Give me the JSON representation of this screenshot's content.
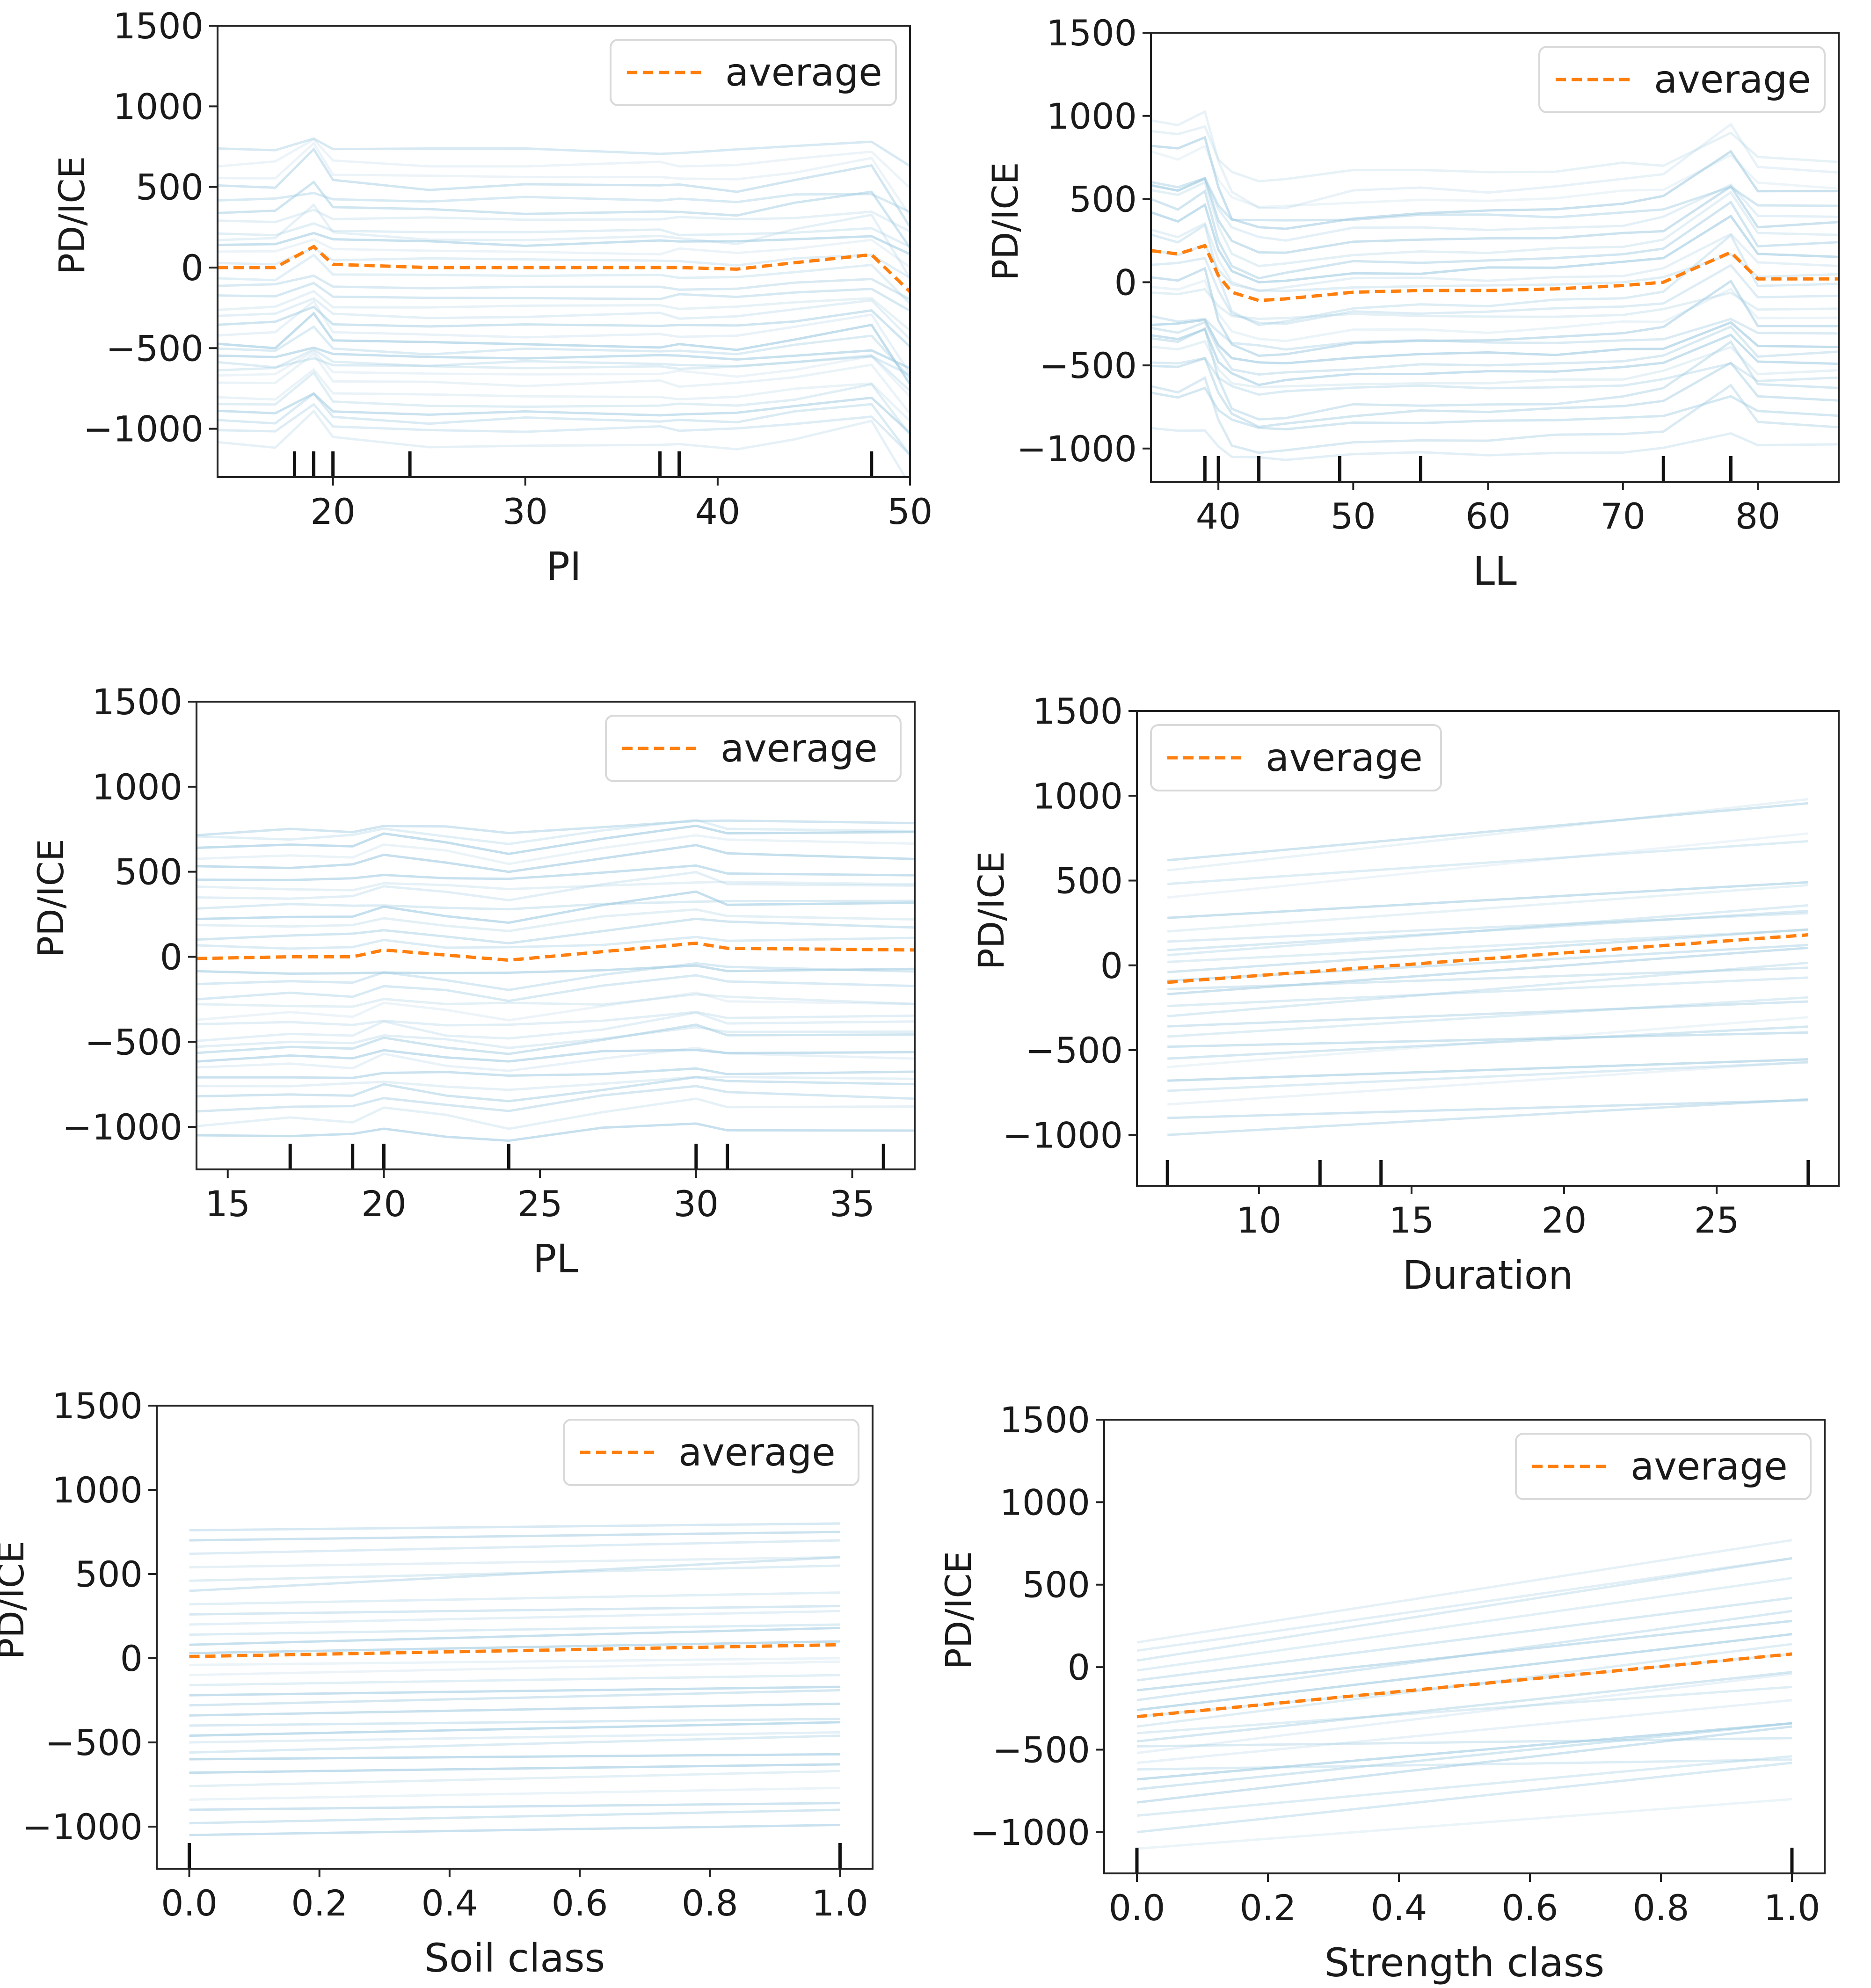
{
  "chart_data": [
    {
      "type": "line",
      "xlabel": "PI",
      "ylabel": "PD/ICE",
      "legend": "average",
      "legend_position": "upper right",
      "xlim": [
        14,
        50
      ],
      "ylim": [
        -1300,
        1500
      ],
      "xticks": [
        20,
        30,
        40,
        50
      ],
      "yticks": [
        -1000,
        -500,
        0,
        500,
        1000,
        1500
      ],
      "rug": [
        18,
        19,
        20,
        24,
        37,
        38,
        48
      ],
      "average": {
        "x": [
          14,
          17,
          19,
          20,
          25,
          30,
          37,
          38,
          41,
          44,
          48,
          50
        ],
        "y": [
          0,
          0,
          130,
          20,
          0,
          0,
          0,
          0,
          -10,
          30,
          80,
          -150
        ]
      },
      "ice_offsets": [
        -1100,
        -1000,
        -950,
        -900,
        -850,
        -800,
        -720,
        -650,
        -620,
        -600,
        -560,
        -520,
        -480,
        -420,
        -350,
        -300,
        -250,
        -180,
        -120,
        -60,
        40,
        100,
        150,
        180,
        220,
        300,
        350,
        420,
        500,
        560,
        640,
        720
      ]
    },
    {
      "type": "line",
      "xlabel": "LL",
      "ylabel": "PD/ICE",
      "legend": "average",
      "legend_position": "upper right",
      "xlim": [
        35,
        86
      ],
      "ylim": [
        -1200,
        1500
      ],
      "xticks": [
        40,
        50,
        60,
        70,
        80
      ],
      "yticks": [
        -1000,
        -500,
        0,
        500,
        1000,
        1500
      ],
      "rug": [
        39,
        40,
        43,
        49,
        55,
        73,
        78
      ],
      "average": {
        "x": [
          35,
          37,
          39,
          40,
          41,
          43,
          45,
          50,
          55,
          60,
          65,
          70,
          73,
          78,
          80,
          86
        ],
        "y": [
          190,
          170,
          220,
          40,
          -60,
          -110,
          -100,
          -60,
          -50,
          -50,
          -40,
          -20,
          0,
          180,
          20,
          20
        ]
      },
      "ice_offsets": [
        -1000,
        -880,
        -800,
        -720,
        -650,
        -600,
        -550,
        -500,
        -450,
        -400,
        -330,
        -280,
        -230,
        -170,
        -110,
        -50,
        30,
        80,
        140,
        200,
        260,
        320,
        380,
        440,
        500,
        560,
        640,
        720
      ]
    },
    {
      "type": "line",
      "xlabel": "PL",
      "ylabel": "PD/ICE",
      "legend": "average",
      "legend_position": "upper right",
      "xlim": [
        14,
        37
      ],
      "ylim": [
        -1250,
        1500
      ],
      "xticks": [
        15,
        20,
        25,
        30,
        35
      ],
      "yticks": [
        -1000,
        -500,
        0,
        500,
        1000,
        1500
      ],
      "rug": [
        17,
        19,
        20,
        24,
        30,
        31,
        36
      ],
      "average": {
        "x": [
          14,
          17,
          19,
          20,
          22,
          24,
          27,
          30,
          31,
          37
        ],
        "y": [
          -10,
          0,
          0,
          40,
          10,
          -20,
          30,
          80,
          50,
          40
        ]
      },
      "ice_offsets": [
        -1050,
        -960,
        -880,
        -820,
        -760,
        -700,
        -640,
        -590,
        -540,
        -500,
        -460,
        -400,
        -340,
        -280,
        -220,
        -160,
        -100,
        60,
        120,
        180,
        240,
        290,
        360,
        410,
        470,
        530,
        590,
        650,
        700,
        740
      ]
    },
    {
      "type": "line",
      "xlabel": "Duration",
      "ylabel": "PD/ICE",
      "legend": "average",
      "legend_position": "upper left",
      "xlim": [
        6,
        29
      ],
      "ylim": [
        -1300,
        1500
      ],
      "xticks": [
        10,
        15,
        20,
        25
      ],
      "yticks": [
        -1000,
        -500,
        0,
        500,
        1000,
        1500
      ],
      "rug": [
        7,
        12,
        14,
        28
      ],
      "average": {
        "x": [
          7,
          28
        ],
        "y": [
          -100,
          180
        ]
      },
      "ice_start": [
        -1000,
        -900,
        -820,
        -740,
        -680,
        -600,
        -550,
        -480,
        -420,
        -360,
        -300,
        -240,
        -170,
        -140,
        -90,
        -40,
        20,
        60,
        90,
        140,
        200,
        280,
        400,
        480,
        560,
        620
      ],
      "ice_slopes": [
        10,
        5,
        12,
        8,
        6,
        14,
        9,
        4,
        11,
        7,
        15,
        8,
        13,
        6,
        10,
        12,
        9,
        14,
        11,
        8,
        13,
        10,
        18,
        12,
        20,
        16
      ]
    },
    {
      "type": "line",
      "xlabel": "Soil class",
      "ylabel": "PD/ICE",
      "legend": "average",
      "legend_position": "upper right",
      "xlim": [
        -0.05,
        1.05
      ],
      "ylim": [
        -1250,
        1500
      ],
      "xticks": [
        "0.0",
        "0.2",
        "0.4",
        "0.6",
        "0.8",
        "1.0"
      ],
      "yticks": [
        -1000,
        -500,
        0,
        500,
        1000,
        1500
      ],
      "rug": [
        0,
        1
      ],
      "average": {
        "x": [
          0,
          1
        ],
        "y": [
          10,
          80
        ]
      },
      "ice_start": [
        -1050,
        -980,
        -900,
        -840,
        -760,
        -680,
        -600,
        -560,
        -500,
        -460,
        -400,
        -340,
        -280,
        -220,
        -160,
        -100,
        -40,
        30,
        80,
        140,
        200,
        260,
        320,
        400,
        460,
        540,
        620,
        700,
        760
      ],
      "ice_slopes": [
        60,
        80,
        40,
        70,
        90,
        50,
        30,
        100,
        60,
        80,
        40,
        70,
        90,
        50,
        60,
        80,
        40,
        70,
        100,
        60,
        80,
        50,
        70,
        200,
        90,
        60,
        80,
        50,
        40
      ]
    },
    {
      "type": "line",
      "xlabel": "Strength class",
      "ylabel": "PD/ICE",
      "legend": "average",
      "legend_position": "upper right",
      "xlim": [
        -0.05,
        1.05
      ],
      "ylim": [
        -1250,
        1500
      ],
      "xticks": [
        "0.0",
        "0.2",
        "0.4",
        "0.6",
        "0.8",
        "1.0"
      ],
      "yticks": [
        -1000,
        -500,
        0,
        500,
        1000,
        1500
      ],
      "rug": [
        0,
        1
      ],
      "average": {
        "x": [
          0,
          1
        ],
        "y": [
          -300,
          80
        ]
      },
      "ice_start": [
        -1100,
        -1000,
        -900,
        -820,
        -740,
        -680,
        -620,
        -580,
        -520,
        -480,
        -450,
        -400,
        -360,
        -300,
        -260,
        -200,
        -140,
        -80,
        -20,
        40,
        100,
        150
      ],
      "ice_slopes": [
        300,
        420,
        360,
        460,
        400,
        340,
        60,
        380,
        480,
        50,
        420,
        280,
        500,
        380,
        460,
        540,
        420,
        500,
        560,
        620,
        560,
        620
      ]
    }
  ]
}
